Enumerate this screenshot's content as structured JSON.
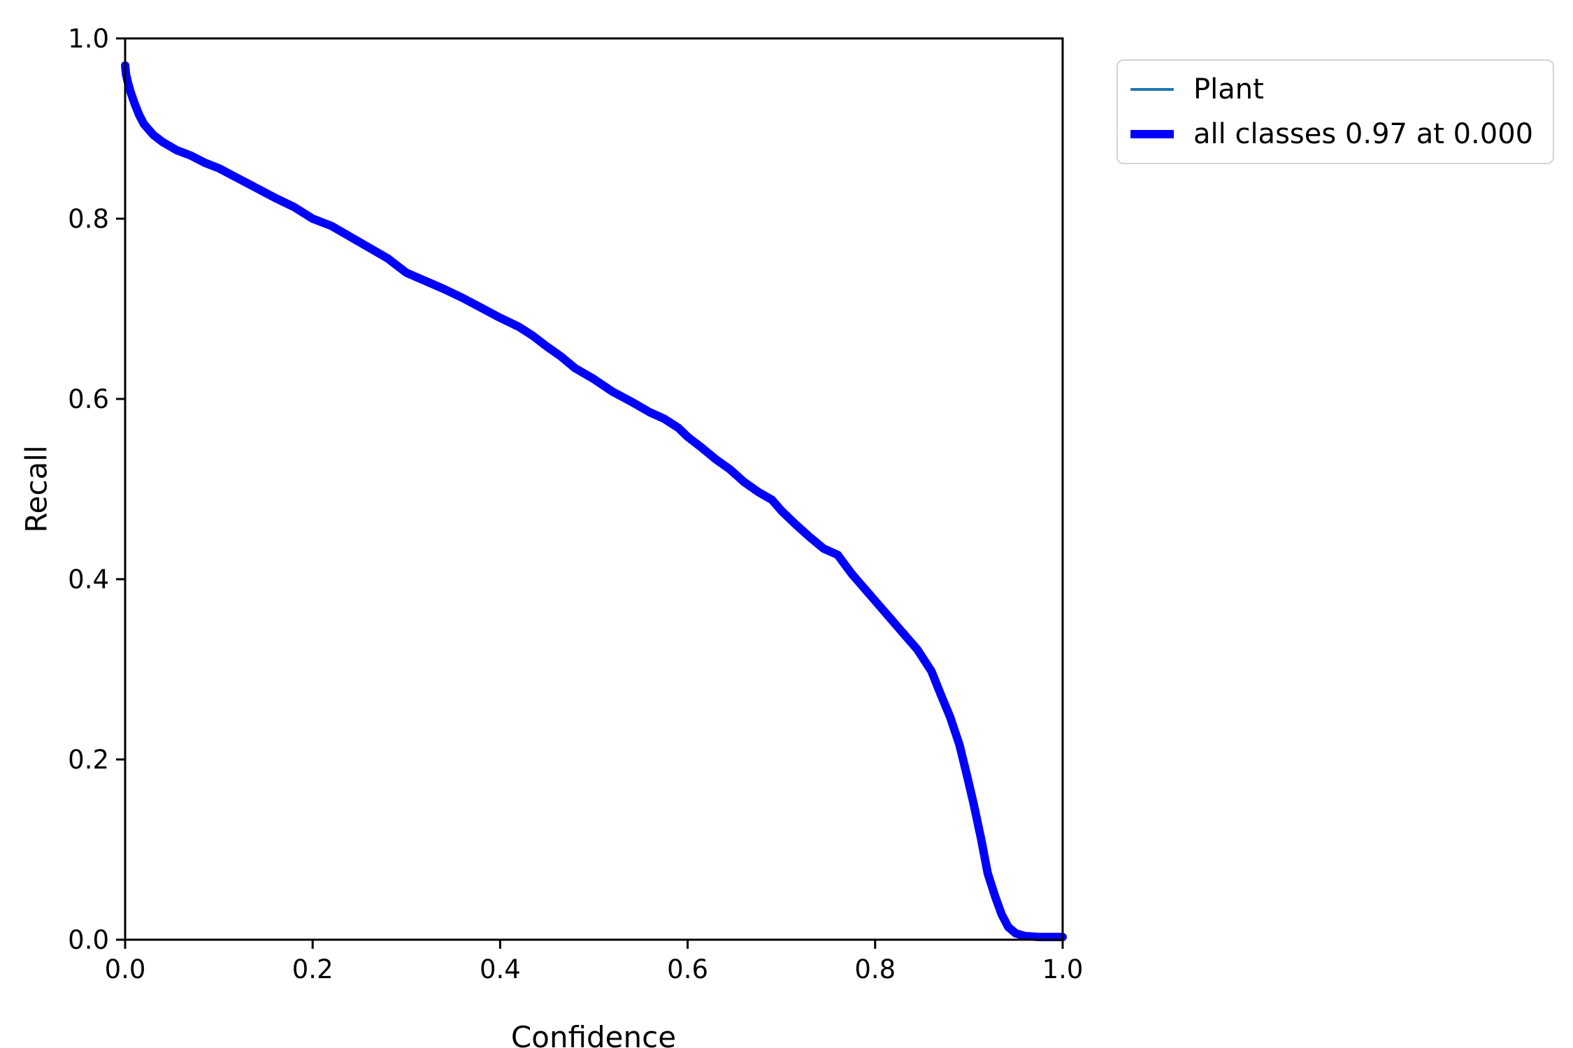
{
  "chart_data": {
    "type": "line",
    "title": "",
    "xlabel": "Confidence",
    "ylabel": "Recall",
    "xlim": [
      0.0,
      1.0
    ],
    "ylim": [
      0.0,
      1.0
    ],
    "grid": false,
    "legend_position": "upper right, outside axes",
    "xticks": [
      "0.0",
      "0.2",
      "0.4",
      "0.6",
      "0.8",
      "1.0"
    ],
    "yticks": [
      "0.0",
      "0.2",
      "0.4",
      "0.6",
      "0.8",
      "1.0"
    ],
    "series": [
      {
        "name": "Plant",
        "color": "#1f77b4",
        "linewidth": 4,
        "points": [
          [
            0.0,
            0.97
          ],
          [
            0.001,
            0.96
          ],
          [
            0.003,
            0.951
          ],
          [
            0.006,
            0.94
          ],
          [
            0.01,
            0.928
          ],
          [
            0.015,
            0.915
          ],
          [
            0.02,
            0.905
          ],
          [
            0.03,
            0.893
          ],
          [
            0.04,
            0.885
          ],
          [
            0.055,
            0.876
          ],
          [
            0.07,
            0.87
          ],
          [
            0.085,
            0.862
          ],
          [
            0.1,
            0.856
          ],
          [
            0.12,
            0.845
          ],
          [
            0.14,
            0.834
          ],
          [
            0.16,
            0.823
          ],
          [
            0.18,
            0.813
          ],
          [
            0.2,
            0.8
          ],
          [
            0.22,
            0.792
          ],
          [
            0.24,
            0.78
          ],
          [
            0.26,
            0.768
          ],
          [
            0.28,
            0.756
          ],
          [
            0.3,
            0.74
          ],
          [
            0.32,
            0.731
          ],
          [
            0.34,
            0.722
          ],
          [
            0.36,
            0.712
          ],
          [
            0.38,
            0.701
          ],
          [
            0.4,
            0.69
          ],
          [
            0.42,
            0.68
          ],
          [
            0.435,
            0.67
          ],
          [
            0.45,
            0.658
          ],
          [
            0.465,
            0.647
          ],
          [
            0.48,
            0.634
          ],
          [
            0.5,
            0.622
          ],
          [
            0.52,
            0.608
          ],
          [
            0.54,
            0.597
          ],
          [
            0.56,
            0.585
          ],
          [
            0.575,
            0.578
          ],
          [
            0.59,
            0.568
          ],
          [
            0.6,
            0.558
          ],
          [
            0.615,
            0.546
          ],
          [
            0.63,
            0.533
          ],
          [
            0.645,
            0.522
          ],
          [
            0.66,
            0.508
          ],
          [
            0.675,
            0.497
          ],
          [
            0.69,
            0.488
          ],
          [
            0.7,
            0.476
          ],
          [
            0.715,
            0.461
          ],
          [
            0.73,
            0.447
          ],
          [
            0.745,
            0.434
          ],
          [
            0.76,
            0.427
          ],
          [
            0.775,
            0.406
          ],
          [
            0.79,
            0.388
          ],
          [
            0.8,
            0.376
          ],
          [
            0.815,
            0.358
          ],
          [
            0.83,
            0.34
          ],
          [
            0.845,
            0.322
          ],
          [
            0.86,
            0.298
          ],
          [
            0.87,
            0.272
          ],
          [
            0.88,
            0.247
          ],
          [
            0.89,
            0.216
          ],
          [
            0.898,
            0.182
          ],
          [
            0.905,
            0.151
          ],
          [
            0.913,
            0.112
          ],
          [
            0.92,
            0.074
          ],
          [
            0.928,
            0.048
          ],
          [
            0.935,
            0.028
          ],
          [
            0.942,
            0.014
          ],
          [
            0.95,
            0.007
          ],
          [
            0.96,
            0.004
          ],
          [
            0.975,
            0.003
          ],
          [
            1.0,
            0.003
          ]
        ]
      },
      {
        "name": "all classes 0.97 at 0.000",
        "color": "#0000ff",
        "linewidth": 12,
        "points": [
          [
            0.0,
            0.97
          ],
          [
            0.001,
            0.96
          ],
          [
            0.003,
            0.951
          ],
          [
            0.006,
            0.94
          ],
          [
            0.01,
            0.928
          ],
          [
            0.015,
            0.915
          ],
          [
            0.02,
            0.905
          ],
          [
            0.03,
            0.893
          ],
          [
            0.04,
            0.885
          ],
          [
            0.055,
            0.876
          ],
          [
            0.07,
            0.87
          ],
          [
            0.085,
            0.862
          ],
          [
            0.1,
            0.856
          ],
          [
            0.12,
            0.845
          ],
          [
            0.14,
            0.834
          ],
          [
            0.16,
            0.823
          ],
          [
            0.18,
            0.813
          ],
          [
            0.2,
            0.8
          ],
          [
            0.22,
            0.792
          ],
          [
            0.24,
            0.78
          ],
          [
            0.26,
            0.768
          ],
          [
            0.28,
            0.756
          ],
          [
            0.3,
            0.74
          ],
          [
            0.32,
            0.731
          ],
          [
            0.34,
            0.722
          ],
          [
            0.36,
            0.712
          ],
          [
            0.38,
            0.701
          ],
          [
            0.4,
            0.69
          ],
          [
            0.42,
            0.68
          ],
          [
            0.435,
            0.67
          ],
          [
            0.45,
            0.658
          ],
          [
            0.465,
            0.647
          ],
          [
            0.48,
            0.634
          ],
          [
            0.5,
            0.622
          ],
          [
            0.52,
            0.608
          ],
          [
            0.54,
            0.597
          ],
          [
            0.56,
            0.585
          ],
          [
            0.575,
            0.578
          ],
          [
            0.59,
            0.568
          ],
          [
            0.6,
            0.558
          ],
          [
            0.615,
            0.546
          ],
          [
            0.63,
            0.533
          ],
          [
            0.645,
            0.522
          ],
          [
            0.66,
            0.508
          ],
          [
            0.675,
            0.497
          ],
          [
            0.69,
            0.488
          ],
          [
            0.7,
            0.476
          ],
          [
            0.715,
            0.461
          ],
          [
            0.73,
            0.447
          ],
          [
            0.745,
            0.434
          ],
          [
            0.76,
            0.427
          ],
          [
            0.775,
            0.406
          ],
          [
            0.79,
            0.388
          ],
          [
            0.8,
            0.376
          ],
          [
            0.815,
            0.358
          ],
          [
            0.83,
            0.34
          ],
          [
            0.845,
            0.322
          ],
          [
            0.86,
            0.298
          ],
          [
            0.87,
            0.272
          ],
          [
            0.88,
            0.247
          ],
          [
            0.89,
            0.216
          ],
          [
            0.898,
            0.182
          ],
          [
            0.905,
            0.151
          ],
          [
            0.913,
            0.112
          ],
          [
            0.92,
            0.074
          ],
          [
            0.928,
            0.048
          ],
          [
            0.935,
            0.028
          ],
          [
            0.942,
            0.014
          ],
          [
            0.95,
            0.007
          ],
          [
            0.96,
            0.004
          ],
          [
            0.975,
            0.003
          ],
          [
            1.0,
            0.003
          ]
        ]
      }
    ]
  },
  "legend": {
    "entries": [
      {
        "label": "Plant",
        "color": "#1f77b4",
        "weight": "thin"
      },
      {
        "label": "all classes 0.97 at 0.000",
        "color": "#0000ff",
        "weight": "thick"
      }
    ]
  },
  "axes": {
    "xlabel": "Confidence",
    "ylabel": "Recall"
  },
  "colors": {
    "spine": "#000000",
    "tick_text": "#000000",
    "background": "#ffffff",
    "legend_border": "#d4d4d4"
  }
}
